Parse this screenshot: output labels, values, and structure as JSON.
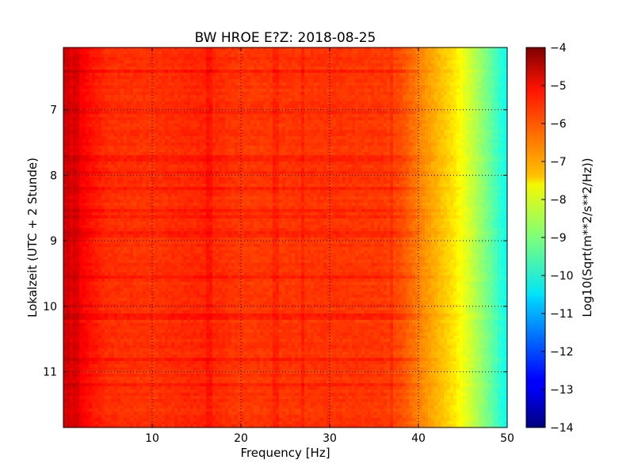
{
  "chart_data": {
    "type": "heatmap",
    "title": "BW HROE E?Z: 2018-08-25",
    "xlabel": "Frequency [Hz]",
    "ylabel": "Lokalzeit (UTC + 2 Stunde)",
    "xlim": [
      0,
      50
    ],
    "ylim": [
      6.05,
      11.85
    ],
    "y_axis_inverted": true,
    "x_ticks": [
      10,
      20,
      30,
      40,
      50
    ],
    "y_ticks": [
      7,
      8,
      9,
      10,
      11
    ],
    "x_tick_labels": [
      "10",
      "20",
      "30",
      "40",
      "50"
    ],
    "y_tick_labels": [
      "7",
      "8",
      "9",
      "10",
      "11"
    ],
    "grid": true,
    "colormap": "jet",
    "colorbar": {
      "label": "Log10(Sqrt(m**2/s**2/Hz))",
      "range": [
        -14,
        -4
      ],
      "ticks": [
        -4,
        -5,
        -6,
        -7,
        -8,
        -9,
        -10,
        -11,
        -12,
        -13,
        -14
      ],
      "tick_labels": [
        "−4",
        "−5",
        "−6",
        "−7",
        "−8",
        "−9",
        "−10",
        "−11",
        "−12",
        "−13",
        "−14"
      ]
    },
    "spectral_profile": {
      "frequency_hz": [
        0,
        1,
        3,
        5,
        10,
        16,
        20,
        30,
        36,
        38,
        40,
        42,
        44,
        46,
        48,
        50
      ],
      "log10_amplitude": [
        -4.9,
        -5.0,
        -5.4,
        -5.7,
        -5.75,
        -5.6,
        -5.8,
        -5.75,
        -5.8,
        -6.0,
        -6.5,
        -7.0,
        -7.5,
        -8.3,
        -9.2,
        -10.2
      ]
    },
    "notable_lines_hz": [
      0.5,
      1.5,
      16.5,
      24,
      27,
      37
    ],
    "stronger_rows_hour": [
      6.4,
      7.05,
      7.75,
      7.95,
      8.2,
      8.55,
      8.65,
      8.9,
      9.55,
      10.15,
      10.8,
      11.2
    ]
  }
}
